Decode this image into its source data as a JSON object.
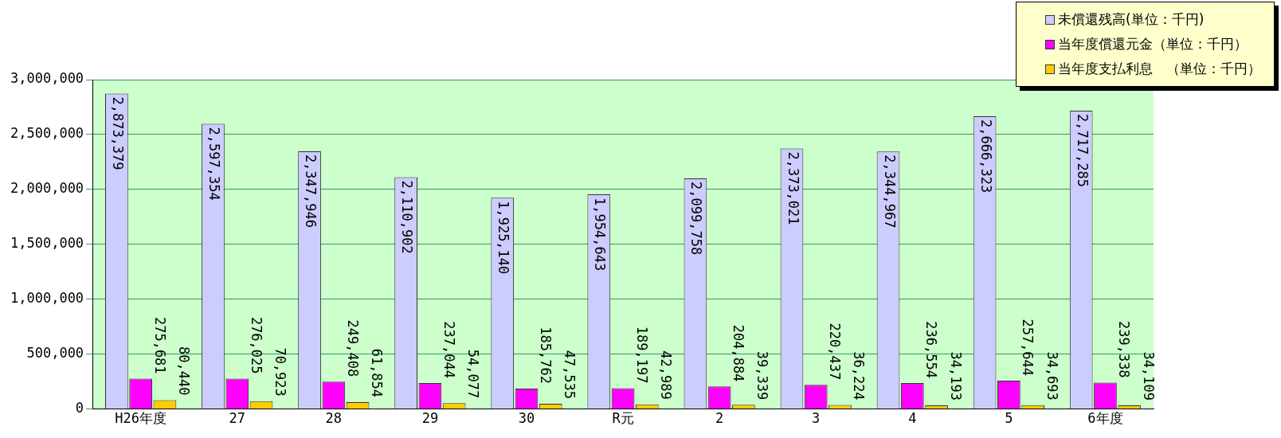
{
  "chart_data": {
    "type": "bar",
    "categories": [
      "H26年度",
      "27",
      "28",
      "29",
      "30",
      "R元",
      "2",
      "3",
      "4",
      "5",
      "6年度"
    ],
    "series": [
      {
        "name": "未償還残高(単位：千円)",
        "color": "#ccccff",
        "values": [
          2873379,
          2597354,
          2347946,
          2110902,
          1925140,
          1954643,
          2099758,
          2373021,
          2344967,
          2666323,
          2717285
        ],
        "value_labels": [
          "2,873,379",
          "2,597,354",
          "2,347,946",
          "2,110,902",
          "1,925,140",
          "1,954,643",
          "2,099,758",
          "2,373,021",
          "2,344,967",
          "2,666,323",
          "2,717,285"
        ]
      },
      {
        "name": "当年度償還元金（単位：千円）",
        "color": "#ff00ff",
        "values": [
          275681,
          276025,
          249408,
          237044,
          185762,
          189197,
          204884,
          220437,
          236554,
          257644,
          239338
        ],
        "value_labels": [
          "275,681",
          "276,025",
          "249,408",
          "237,044",
          "185,762",
          "189,197",
          "204,884",
          "220,437",
          "236,554",
          "257,644",
          "239,338"
        ]
      },
      {
        "name": "当年度支払利息　（単位：千円）",
        "color": "#ffcc00",
        "values": [
          80440,
          70923,
          61854,
          54077,
          47535,
          42989,
          39339,
          36224,
          34193,
          34693,
          34109
        ],
        "value_labels": [
          "80,440",
          "70,923",
          "61,854",
          "54,077",
          "47,535",
          "42,989",
          "39,339",
          "36,224",
          "34,193",
          "34,693",
          "34,109"
        ]
      }
    ],
    "ylim": [
      0,
      3000000
    ],
    "yticks": [
      0,
      {
        "value": 500000,
        "label": "500,000"
      },
      {
        "value": 1000000,
        "label": "1,000,000"
      },
      {
        "value": 1500000,
        "label": "1,500,000"
      },
      {
        "value": 2000000,
        "label": "2,000,000"
      },
      {
        "value": 2500000,
        "label": "2,500,000"
      },
      {
        "value": 3000000,
        "label": "3,000,000"
      }
    ],
    "grid": "y",
    "legend": "top right"
  }
}
